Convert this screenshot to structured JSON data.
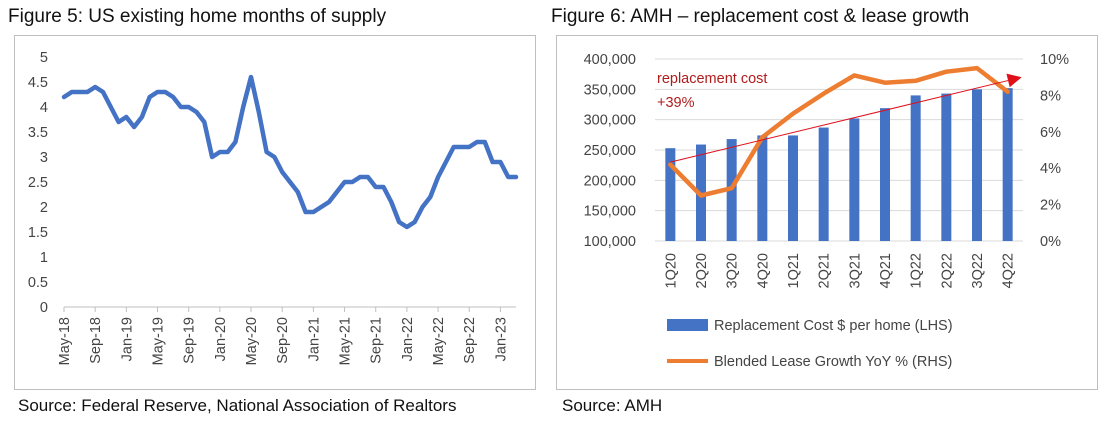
{
  "figure5": {
    "title": "Figure 5: US existing home months of supply",
    "source": "Source: Federal Reserve, National Association of Realtors"
  },
  "figure6": {
    "title": "Figure 6: AMH – replacement cost & lease growth",
    "source": "Source: AMH",
    "annotation_line1": "replacement cost",
    "annotation_line2": "+39%",
    "legend_bar": "Replacement Cost $ per home (LHS)",
    "legend_line": "Blended Lease Growth YoY % (RHS)"
  },
  "colors": {
    "line_blue": "#4472c4",
    "bar_blue": "#4472c4",
    "line_orange": "#ed7d31",
    "arrow_red": "#e0101a",
    "annotation_red": "#b01c1c",
    "grid": "#d9d9d9",
    "frame": "#bfbfbf"
  },
  "chart_data": [
    {
      "type": "line",
      "title": "Figure 5: US existing home months of supply",
      "xlabel": "",
      "ylabel": "",
      "ylim": [
        0,
        5
      ],
      "yticks": [
        "0",
        "0.5",
        "1",
        "1.5",
        "2",
        "2.5",
        "3",
        "3.5",
        "4",
        "4.5",
        "5"
      ],
      "xticks": [
        "May-18",
        "Sep-18",
        "Jan-19",
        "May-19",
        "Sep-19",
        "Jan-20",
        "May-20",
        "Sep-20",
        "Jan-21",
        "May-21",
        "Sep-21",
        "Jan-22",
        "May-22",
        "Sep-22",
        "Jan-23"
      ],
      "x_start": "May-18",
      "x_end": "May-23",
      "grid": false,
      "series": [
        {
          "name": "Months of supply",
          "values": [
            4.2,
            4.3,
            4.3,
            4.3,
            4.4,
            4.3,
            4.0,
            3.7,
            3.8,
            3.6,
            3.8,
            4.2,
            4.3,
            4.3,
            4.2,
            4.0,
            4.0,
            3.9,
            3.7,
            3.0,
            3.1,
            3.1,
            3.3,
            4.0,
            4.6,
            3.9,
            3.1,
            3.0,
            2.7,
            2.5,
            2.3,
            1.9,
            1.9,
            2.0,
            2.1,
            2.3,
            2.5,
            2.5,
            2.6,
            2.6,
            2.4,
            2.4,
            2.1,
            1.7,
            1.6,
            1.7,
            2.0,
            2.2,
            2.6,
            2.9,
            3.2,
            3.2,
            3.2,
            3.3,
            3.3,
            2.9,
            2.9,
            2.6,
            2.6
          ]
        }
      ]
    },
    {
      "type": "bar",
      "title": "Figure 6: AMH – replacement cost & lease growth",
      "categories": [
        "1Q20",
        "2Q20",
        "3Q20",
        "4Q20",
        "1Q21",
        "2Q21",
        "3Q21",
        "4Q21",
        "1Q22",
        "2Q22",
        "3Q22",
        "4Q22"
      ],
      "ylim_left": [
        100000,
        400000
      ],
      "yticks_left": [
        "100,000",
        "150,000",
        "200,000",
        "250,000",
        "300,000",
        "350,000",
        "400,000"
      ],
      "ylim_right": [
        0,
        10
      ],
      "yticks_right": [
        "0%",
        "2%",
        "4%",
        "6%",
        "8%",
        "10%"
      ],
      "grid": true,
      "legend_position": "bottom",
      "series": [
        {
          "name": "Replacement Cost $ per home (LHS)",
          "type": "bar",
          "axis": "left",
          "values": [
            253000,
            259000,
            268000,
            274000,
            274000,
            287000,
            302000,
            319000,
            340000,
            343000,
            350000,
            352000
          ]
        },
        {
          "name": "Blended Lease Growth YoY % (RHS)",
          "type": "line",
          "axis": "right",
          "values": [
            4.2,
            2.5,
            2.9,
            5.7,
            7.0,
            8.1,
            9.1,
            8.7,
            8.8,
            9.3,
            9.5,
            8.2
          ]
        }
      ],
      "annotation": {
        "text": "replacement cost +39%",
        "from_value": 230000,
        "to_value": 350000
      }
    }
  ]
}
